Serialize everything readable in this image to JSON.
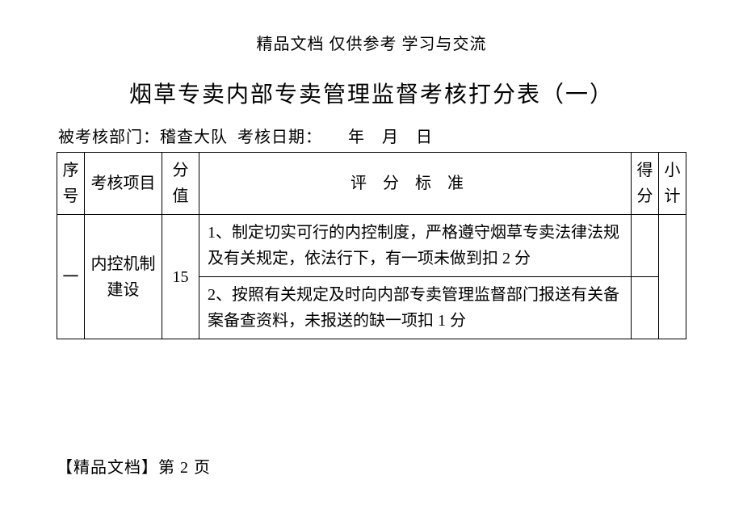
{
  "header_note": "精品文档 仅供参考 学习与交流",
  "title": "烟草专卖内部专卖管理监督考核打分表（一）",
  "meta": {
    "dept_label": "被考核部门：",
    "dept_value": "稽查大队",
    "date_label": "考核日期：",
    "date_value": "　　年　月　日"
  },
  "columns": {
    "seq": "序号",
    "item": "考核项目",
    "score": "分值",
    "criteria": "评分标准",
    "got": "得分",
    "subtotal": "小计"
  },
  "rows": [
    {
      "seq": "一",
      "item": "内控机制建设",
      "score": "15",
      "criteria": [
        "1、制定切实可行的内控制度，严格遵守烟草专卖法律法规及有关规定，依法行下，有一项未做到扣 2 分",
        "2、按照有关规定及时向内部专卖管理监督部门报送有关备案备查资料，未报送的缺一项扣 1 分"
      ],
      "got": "",
      "subtotal": ""
    }
  ],
  "footer": "【精品文档】第 2 页"
}
